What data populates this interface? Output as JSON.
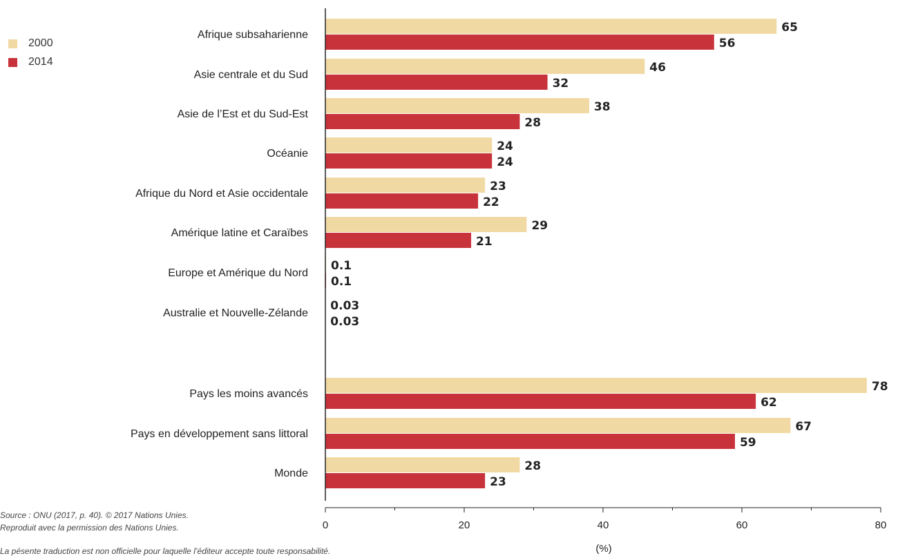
{
  "chart_data": {
    "type": "bar",
    "orientation": "horizontal",
    "categories": [
      "Afrique subsaharienne",
      "Asie centrale et du Sud",
      "Asie de l’Est et du Sud-Est",
      "Océanie",
      "Afrique du Nord et Asie occidentale",
      "Amérique latine et Caraïbes",
      "Europe et Amérique du Nord",
      "Australie et Nouvelle-Zélande",
      "Pays les moins avancés",
      "Pays en développement sans littoral",
      "Monde"
    ],
    "series": [
      {
        "name": "2000",
        "color": "#f1d9a3",
        "values": [
          65,
          46,
          38,
          24,
          23,
          29,
          0.1,
          0.03,
          78,
          67,
          28
        ],
        "labels": [
          "65",
          "46",
          "38",
          "24",
          "23",
          "29",
          "0.1",
          "0.03",
          "78",
          "67",
          "28"
        ]
      },
      {
        "name": "2014",
        "color": "#c8323a",
        "values": [
          56,
          32,
          28,
          24,
          22,
          21,
          0.1,
          0.03,
          62,
          59,
          23
        ],
        "labels": [
          "56",
          "32",
          "28",
          "24",
          "22",
          "21",
          "0.1",
          "0.03",
          "62",
          "59",
          "23"
        ]
      }
    ],
    "xlim": [
      0,
      80
    ],
    "xticks": [
      0,
      20,
      40,
      60,
      80
    ],
    "xlabel": "(%)",
    "legend": "top-left",
    "grid": false
  },
  "source": {
    "line1": "Source : ONU (2017, p. 40). © 2017 Nations Unies.",
    "line2": "Reproduit avec la permission des Nations Unies."
  },
  "note": "La pésente traduction est non officielle pour laquelle l’éditeur accepte toute responsabilité."
}
